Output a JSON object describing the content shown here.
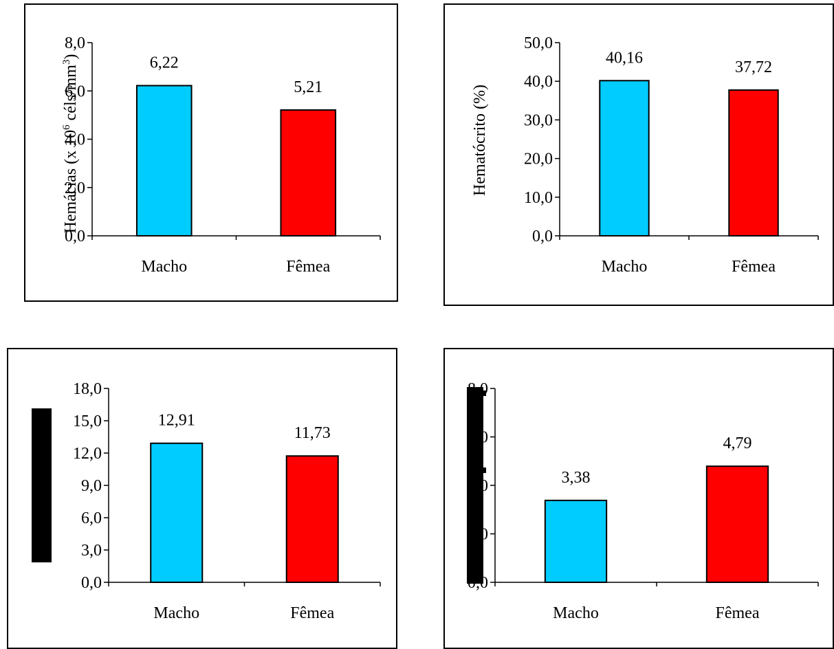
{
  "colors": {
    "macho": "#00CCFF",
    "femea": "#FF0000"
  },
  "chart_data": [
    {
      "type": "bar",
      "categories": [
        "Macho",
        "Fêmea"
      ],
      "values": [
        6.22,
        5.21
      ],
      "value_labels": [
        "6,22",
        "5,21"
      ],
      "ylabel_main": "Hemácias (x 10",
      "ylabel_sup1": "6",
      "ylabel_mid": " céls/mm",
      "ylabel_sup2": "3",
      "ylabel_end": ")",
      "ylim": [
        0,
        8
      ],
      "yticks": [
        "0,0",
        "2,0",
        "4,0",
        "6,0",
        "8,0"
      ],
      "grid": false
    },
    {
      "type": "bar",
      "categories": [
        "Macho",
        "Fêmea"
      ],
      "values": [
        40.16,
        37.72
      ],
      "value_labels": [
        "40,16",
        "37,72"
      ],
      "ylabel_main": "Hematócrito (%)",
      "ylim": [
        0,
        50
      ],
      "yticks": [
        "0,0",
        "10,0",
        "20,0",
        "30,0",
        "40,0",
        "50,0"
      ],
      "grid": false
    },
    {
      "type": "bar",
      "categories": [
        "Macho",
        "Fêmea"
      ],
      "values": [
        12.91,
        11.73
      ],
      "value_labels": [
        "12,91",
        "11,73"
      ],
      "ylim": [
        0,
        18
      ],
      "yticks": [
        "0,0",
        "3,0",
        "6,0",
        "9,0",
        "12,0",
        "15,0",
        "18,0"
      ],
      "grid": false
    },
    {
      "type": "bar",
      "categories": [
        "Macho",
        "Fêmea"
      ],
      "values": [
        3.38,
        4.79
      ],
      "value_labels": [
        "3,38",
        "4,79"
      ],
      "ylim": [
        0,
        8
      ],
      "yticks": [
        "0,0",
        "2,0",
        "4,0",
        "6,0",
        "8,0"
      ],
      "grid": false
    }
  ]
}
